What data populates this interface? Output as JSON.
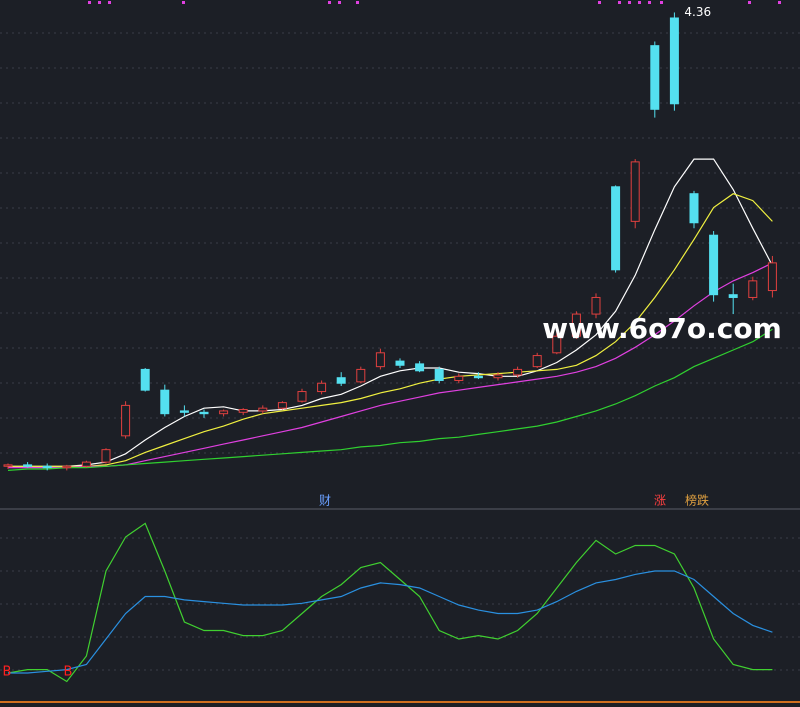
{
  "chart_data": [
    {
      "type": "candlestick",
      "open": [
        1.08,
        1.09,
        1.08,
        1.07,
        1.08,
        1.11,
        1.3,
        1.78,
        1.63,
        1.48,
        1.47,
        1.46,
        1.47,
        1.48,
        1.5,
        1.55,
        1.62,
        1.72,
        1.69,
        1.8,
        1.84,
        1.82,
        1.78,
        1.7,
        1.73,
        1.72,
        1.74,
        1.8,
        1.9,
        2.02,
        2.18,
        3.1,
        2.85,
        4.12,
        4.32,
        3.05,
        2.75,
        2.32,
        2.3,
        2.35
      ],
      "high": [
        1.1,
        1.11,
        1.1,
        1.09,
        1.12,
        1.21,
        1.55,
        1.79,
        1.67,
        1.52,
        1.49,
        1.49,
        1.5,
        1.52,
        1.55,
        1.64,
        1.7,
        1.76,
        1.8,
        1.93,
        1.86,
        1.84,
        1.8,
        1.75,
        1.76,
        1.76,
        1.8,
        1.9,
        2.05,
        2.2,
        2.33,
        3.11,
        3.3,
        4.15,
        4.36,
        3.07,
        2.78,
        2.4,
        2.45,
        2.6
      ],
      "low": [
        1.06,
        1.07,
        1.05,
        1.05,
        1.07,
        1.1,
        1.28,
        1.62,
        1.44,
        1.44,
        1.43,
        1.44,
        1.45,
        1.46,
        1.49,
        1.54,
        1.6,
        1.66,
        1.68,
        1.78,
        1.79,
        1.76,
        1.68,
        1.68,
        1.71,
        1.7,
        1.72,
        1.79,
        1.89,
        2.0,
        2.15,
        2.48,
        2.8,
        3.6,
        3.65,
        2.8,
        2.27,
        2.18,
        2.28,
        2.3
      ],
      "close": [
        1.09,
        1.08,
        1.07,
        1.08,
        1.11,
        1.2,
        1.52,
        1.63,
        1.46,
        1.47,
        1.46,
        1.48,
        1.49,
        1.5,
        1.54,
        1.62,
        1.68,
        1.68,
        1.78,
        1.9,
        1.81,
        1.77,
        1.7,
        1.73,
        1.72,
        1.74,
        1.78,
        1.88,
        2.02,
        2.18,
        2.3,
        2.5,
        3.28,
        3.66,
        3.7,
        2.84,
        2.32,
        2.3,
        2.42,
        2.55
      ],
      "up_color": "#e0403f",
      "down_color": "#54e0f0",
      "series": [
        {
          "color": "#ffffff",
          "values": [
            1.08,
            1.08,
            1.08,
            1.08,
            1.09,
            1.11,
            1.17,
            1.27,
            1.36,
            1.44,
            1.5,
            1.51,
            1.48,
            1.48,
            1.49,
            1.52,
            1.57,
            1.6,
            1.66,
            1.73,
            1.77,
            1.79,
            1.79,
            1.76,
            1.75,
            1.73,
            1.73,
            1.77,
            1.83,
            1.92,
            2.03,
            2.2,
            2.46,
            2.79,
            3.1,
            3.3,
            3.3,
            3.08,
            2.8,
            2.53
          ]
        },
        {
          "color": "#f0f040",
          "values": [
            1.08,
            1.08,
            1.08,
            1.08,
            1.08,
            1.09,
            1.12,
            1.18,
            1.23,
            1.28,
            1.33,
            1.37,
            1.42,
            1.46,
            1.48,
            1.5,
            1.52,
            1.54,
            1.57,
            1.61,
            1.64,
            1.68,
            1.71,
            1.73,
            1.74,
            1.75,
            1.76,
            1.77,
            1.78,
            1.81,
            1.88,
            1.98,
            2.12,
            2.3,
            2.5,
            2.72,
            2.95,
            3.05,
            3.0,
            2.85
          ]
        },
        {
          "color": "#e040e0",
          "values": [
            1.07,
            1.07,
            1.07,
            1.07,
            1.08,
            1.08,
            1.09,
            1.12,
            1.15,
            1.18,
            1.21,
            1.24,
            1.27,
            1.3,
            1.33,
            1.36,
            1.4,
            1.44,
            1.48,
            1.52,
            1.55,
            1.58,
            1.61,
            1.63,
            1.65,
            1.67,
            1.69,
            1.71,
            1.73,
            1.76,
            1.8,
            1.86,
            1.94,
            2.03,
            2.13,
            2.24,
            2.34,
            2.42,
            2.48,
            2.55
          ]
        },
        {
          "color": "#30d030",
          "values": [
            1.05,
            1.06,
            1.06,
            1.07,
            1.07,
            1.08,
            1.09,
            1.1,
            1.11,
            1.12,
            1.13,
            1.14,
            1.15,
            1.16,
            1.17,
            1.18,
            1.19,
            1.2,
            1.22,
            1.23,
            1.25,
            1.26,
            1.28,
            1.29,
            1.31,
            1.33,
            1.35,
            1.37,
            1.4,
            1.44,
            1.48,
            1.53,
            1.59,
            1.66,
            1.72,
            1.8,
            1.86,
            1.92,
            1.98,
            2.07
          ]
        }
      ],
      "ylim": [
        0.8,
        4.45
      ],
      "annotations": [
        "财",
        "涨",
        "榜跌"
      ],
      "watermark": "www.6o7o.com"
    },
    {
      "type": "line",
      "series": [
        {
          "color": "#40d030",
          "values": [
            10,
            12,
            12,
            5,
            20,
            70,
            90,
            98,
            70,
            40,
            35,
            35,
            32,
            32,
            35,
            45,
            55,
            62,
            72,
            75,
            65,
            55,
            35,
            30,
            32,
            30,
            35,
            45,
            60,
            75,
            88,
            80,
            85,
            85,
            80,
            60,
            30,
            15,
            12,
            12
          ]
        },
        {
          "color": "#2a90e0",
          "values": [
            10,
            10,
            11,
            12,
            15,
            30,
            45,
            55,
            55,
            53,
            52,
            51,
            50,
            50,
            50,
            51,
            53,
            55,
            60,
            63,
            62,
            60,
            55,
            50,
            47,
            45,
            45,
            47,
            52,
            58,
            63,
            65,
            68,
            70,
            70,
            65,
            55,
            45,
            38,
            34
          ]
        }
      ],
      "ylim": [
        0,
        100
      ],
      "signals": [
        "B",
        "B"
      ]
    }
  ]
}
